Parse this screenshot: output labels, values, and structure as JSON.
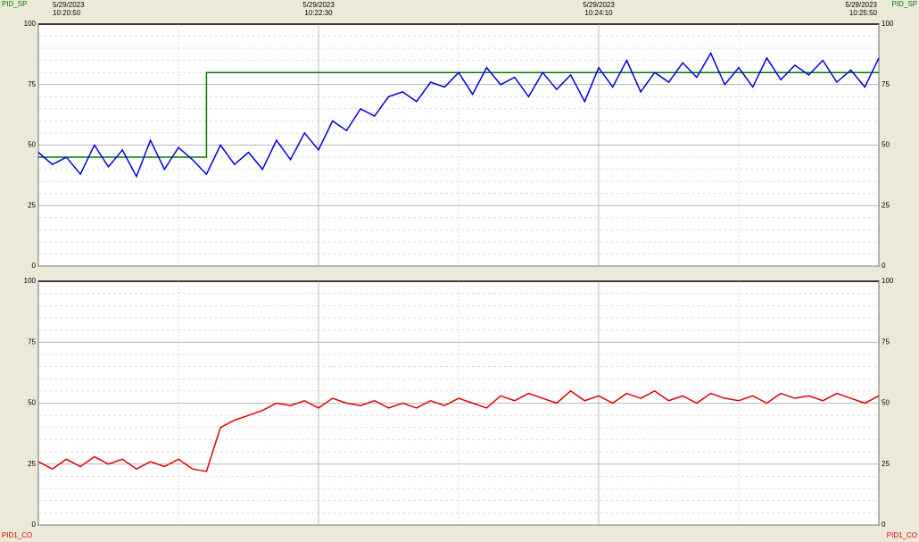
{
  "chart_data": [
    {
      "type": "line",
      "legend": "top",
      "x": [
        "10:20:50",
        "10:20:55",
        "10:21:00",
        "10:21:05",
        "10:21:10",
        "10:21:15",
        "10:21:20",
        "10:21:25",
        "10:21:30",
        "10:21:35",
        "10:21:40",
        "10:21:45",
        "10:21:50",
        "10:21:55",
        "10:22:00",
        "10:22:05",
        "10:22:10",
        "10:22:15",
        "10:22:20",
        "10:22:25",
        "10:22:30",
        "10:22:35",
        "10:22:40",
        "10:22:45",
        "10:22:50",
        "10:22:55",
        "10:23:00",
        "10:23:05",
        "10:23:10",
        "10:23:15",
        "10:23:20",
        "10:23:25",
        "10:23:30",
        "10:23:35",
        "10:23:40",
        "10:23:45",
        "10:23:50",
        "10:23:55",
        "10:24:00",
        "10:24:05",
        "10:24:10",
        "10:24:15",
        "10:24:20",
        "10:24:25",
        "10:24:30",
        "10:24:35",
        "10:24:40",
        "10:24:45",
        "10:24:50",
        "10:24:55",
        "10:25:00",
        "10:25:05",
        "10:25:10",
        "10:25:15",
        "10:25:20",
        "10:25:25",
        "10:25:30",
        "10:25:35",
        "10:25:40",
        "10:25:45",
        "10:25:50"
      ],
      "series": [
        {
          "name": "PID_SP",
          "color": "#007a00",
          "step": true,
          "values": [
            45,
            45,
            45,
            45,
            45,
            45,
            45,
            45,
            45,
            45,
            45,
            45,
            80,
            80,
            80,
            80,
            80,
            80,
            80,
            80,
            80,
            80,
            80,
            80,
            80,
            80,
            80,
            80,
            80,
            80,
            80,
            80,
            80,
            80,
            80,
            80,
            80,
            80,
            80,
            80,
            80,
            80,
            80,
            80,
            80,
            80,
            80,
            80,
            80,
            80,
            80,
            80,
            80,
            80,
            80,
            80,
            80,
            80,
            80,
            80,
            80
          ]
        },
        {
          "color": "#0000e0",
          "values": [
            47,
            42,
            45,
            38,
            50,
            41,
            48,
            37,
            52,
            40,
            49,
            44,
            38,
            50,
            42,
            47,
            40,
            52,
            44,
            55,
            48,
            60,
            56,
            65,
            62,
            70,
            72,
            68,
            76,
            74,
            80,
            71,
            82,
            75,
            78,
            70,
            80,
            73,
            79,
            68,
            82,
            74,
            85,
            72,
            80,
            76,
            84,
            78,
            88,
            75,
            82,
            74,
            86,
            77,
            83,
            79,
            85,
            76,
            81,
            74,
            86
          ]
        }
      ],
      "xlim": [
        "10:20:50",
        "10:25:50"
      ],
      "xticks": [
        {
          "value": "10:20:50",
          "label": "5/29/2023 10:20:50"
        },
        {
          "value": "10:22:30",
          "label": "5/29/2023 10:22:30"
        },
        {
          "value": "10:24:10",
          "label": "5/29/2023 10:24:10"
        },
        {
          "value": "10:25:50",
          "label": "5/29/2023 10:25:50"
        }
      ],
      "minor_xticks": [
        "10:21:40",
        "10:23:20",
        "10:25:00"
      ],
      "ylim": [
        0,
        100
      ],
      "yticks": [
        0,
        25,
        50,
        75,
        100
      ],
      "minor_yticks": [
        5,
        10,
        15,
        20,
        30,
        35,
        40,
        45,
        55,
        60,
        65,
        70,
        80,
        85,
        90,
        95
      ],
      "grid": true
    },
    {
      "type": "line",
      "legend": "bottom",
      "x": [
        "10:20:50",
        "10:20:55",
        "10:21:00",
        "10:21:05",
        "10:21:10",
        "10:21:15",
        "10:21:20",
        "10:21:25",
        "10:21:30",
        "10:21:35",
        "10:21:40",
        "10:21:45",
        "10:21:50",
        "10:21:55",
        "10:22:00",
        "10:22:05",
        "10:22:10",
        "10:22:15",
        "10:22:20",
        "10:22:25",
        "10:22:30",
        "10:22:35",
        "10:22:40",
        "10:22:45",
        "10:22:50",
        "10:22:55",
        "10:23:00",
        "10:23:05",
        "10:23:10",
        "10:23:15",
        "10:23:20",
        "10:23:25",
        "10:23:30",
        "10:23:35",
        "10:23:40",
        "10:23:45",
        "10:23:50",
        "10:23:55",
        "10:24:00",
        "10:24:05",
        "10:24:10",
        "10:24:15",
        "10:24:20",
        "10:24:25",
        "10:24:30",
        "10:24:35",
        "10:24:40",
        "10:24:45",
        "10:24:50",
        "10:24:55",
        "10:25:00",
        "10:25:05",
        "10:25:10",
        "10:25:15",
        "10:25:20",
        "10:25:25",
        "10:25:30",
        "10:25:35",
        "10:25:40",
        "10:25:45",
        "10:25:50"
      ],
      "series": [
        {
          "name": "PID1_CO",
          "color": "#e00000",
          "values": [
            26,
            23,
            27,
            24,
            28,
            25,
            27,
            23,
            26,
            24,
            27,
            23,
            22,
            40,
            43,
            45,
            47,
            50,
            49,
            51,
            48,
            52,
            50,
            49,
            51,
            48,
            50,
            48,
            51,
            49,
            52,
            50,
            48,
            53,
            51,
            54,
            52,
            50,
            55,
            51,
            53,
            50,
            54,
            52,
            55,
            51,
            53,
            50,
            54,
            52,
            51,
            53,
            50,
            54,
            52,
            53,
            51,
            54,
            52,
            50,
            53
          ]
        }
      ],
      "xlim": [
        "10:20:50",
        "10:25:50"
      ],
      "xticks": [
        "10:20:50",
        "10:22:30",
        "10:24:10",
        "10:25:50"
      ],
      "minor_xticks": [
        "10:21:40",
        "10:23:20",
        "10:25:00"
      ],
      "ylim": [
        0,
        100
      ],
      "yticks": [
        0,
        25,
        50,
        75,
        100
      ],
      "minor_yticks": [
        5,
        10,
        15,
        20,
        30,
        35,
        40,
        45,
        55,
        60,
        65,
        70,
        80,
        85,
        90,
        95
      ],
      "grid": true
    }
  ]
}
